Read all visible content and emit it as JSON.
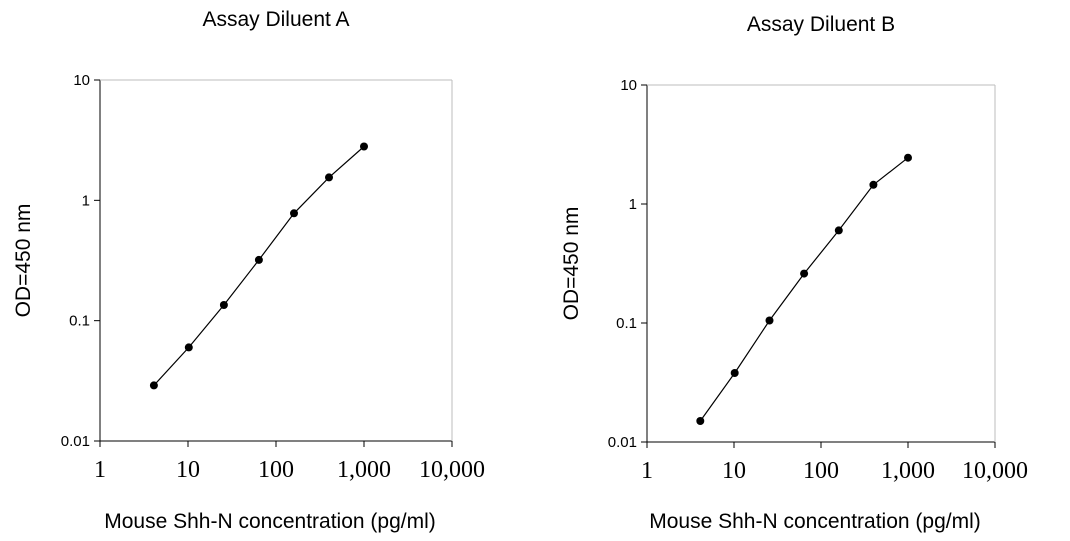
{
  "chart_data": [
    {
      "type": "line",
      "title": "Assay Diluent A",
      "xlabel": "Mouse Shh-N concentration (pg/ml)",
      "ylabel": "OD=450 nm",
      "x_scale": "log",
      "y_scale": "log",
      "xlim": [
        1,
        10000
      ],
      "ylim": [
        0.01,
        10
      ],
      "x_ticks": [
        1,
        10,
        100,
        1000,
        10000
      ],
      "x_tick_labels": [
        "1",
        "10",
        "100",
        "1,000",
        "10,000"
      ],
      "y_ticks": [
        0.01,
        0.1,
        1,
        10
      ],
      "y_tick_labels": [
        "0.01",
        "0.1",
        "1",
        "10"
      ],
      "grid": false,
      "series": [
        {
          "x": [
            4.1,
            10.2,
            25.6,
            64,
            160,
            400,
            1000
          ],
          "y": [
            0.029,
            0.06,
            0.135,
            0.32,
            0.78,
            1.55,
            2.8
          ],
          "marker": "circle",
          "color": "#000000"
        }
      ]
    },
    {
      "type": "line",
      "title": "Assay Diluent B",
      "xlabel": "Mouse Shh-N concentration (pg/ml)",
      "ylabel": "OD=450 nm",
      "x_scale": "log",
      "y_scale": "log",
      "xlim": [
        1,
        10000
      ],
      "ylim": [
        0.01,
        10
      ],
      "x_ticks": [
        1,
        10,
        100,
        1000,
        10000
      ],
      "x_tick_labels": [
        "1",
        "10",
        "100",
        "1,000",
        "10,000"
      ],
      "y_ticks": [
        0.01,
        0.1,
        1,
        10
      ],
      "y_tick_labels": [
        "0.01",
        "0.1",
        "1",
        "10"
      ],
      "grid": false,
      "series": [
        {
          "x": [
            4.1,
            10.2,
            25.6,
            64,
            160,
            400,
            1000
          ],
          "y": [
            0.015,
            0.038,
            0.105,
            0.26,
            0.6,
            1.45,
            2.45
          ],
          "marker": "circle",
          "color": "#000000"
        }
      ]
    }
  ]
}
